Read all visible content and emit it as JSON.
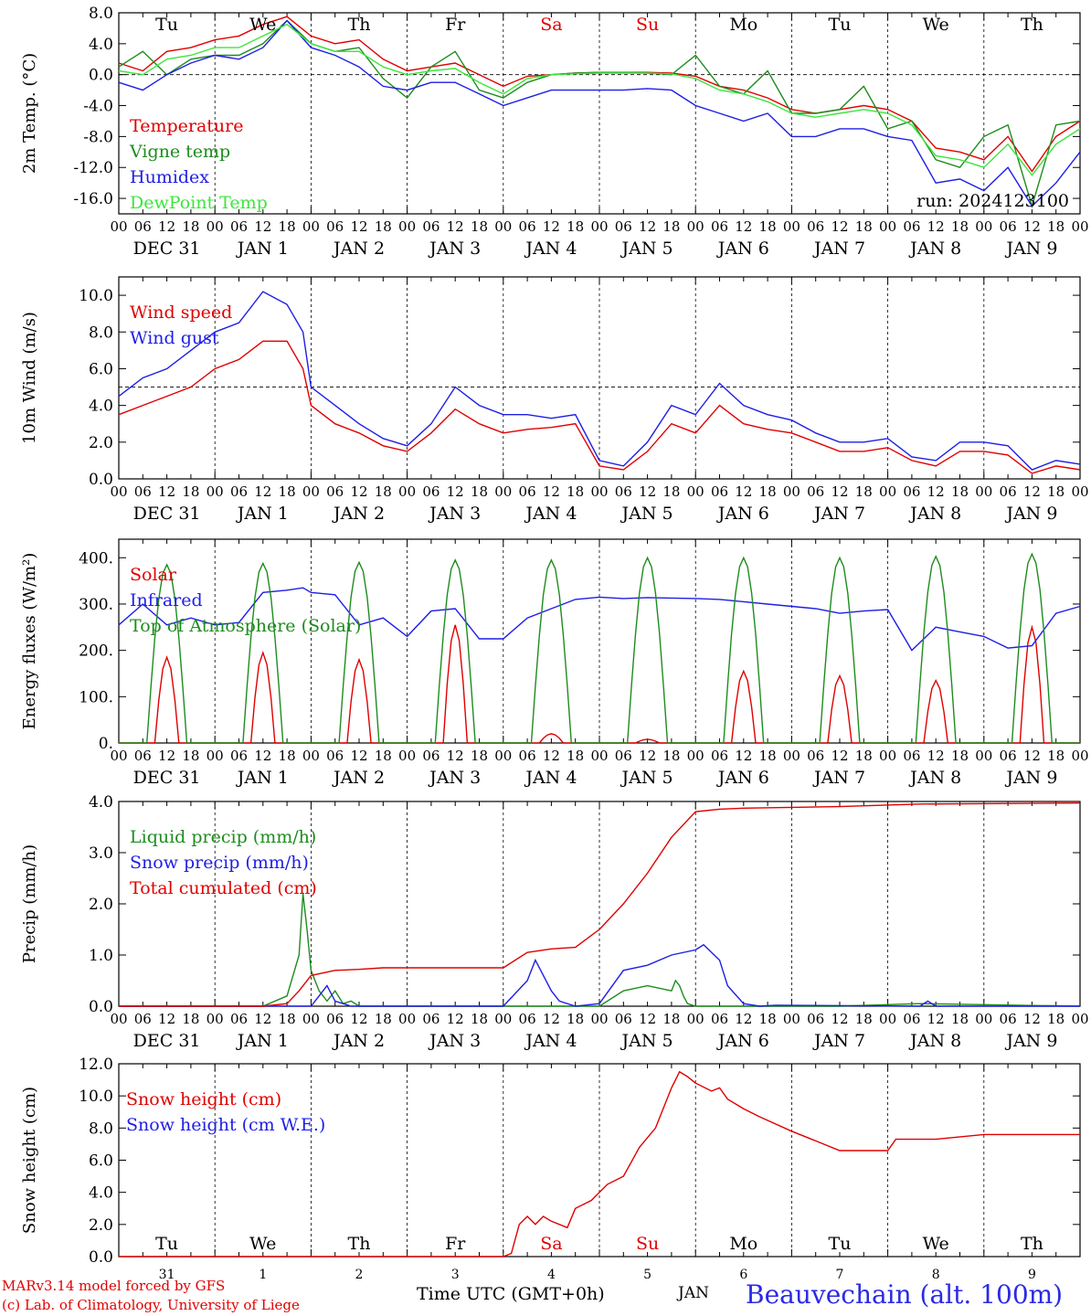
{
  "footer": {
    "credit_line1": "MARv3.14 model forced by GFS",
    "credit_line2": "(c) Lab. of Climatology, University of Liege",
    "x_title": "Time UTC (GMT+0h)",
    "month_label": "JAN",
    "station": "Beauvechain (alt. 100m)"
  },
  "weekday_labels": [
    "Tu",
    "We",
    "Th",
    "Fr",
    "Sa",
    "Su",
    "Mo",
    "Tu",
    "We",
    "Th"
  ],
  "weekend_flags": [
    false,
    false,
    false,
    false,
    true,
    true,
    false,
    false,
    false,
    false
  ],
  "date_labels": [
    "DEC 31",
    "JAN  1",
    "JAN  2",
    "JAN  3",
    "JAN  4",
    "JAN  5",
    "JAN  6",
    "JAN  7",
    "JAN  8",
    "JAN  9"
  ],
  "bottom_day_numbers": [
    "31",
    "1",
    "2",
    "3",
    "4",
    "5",
    "6",
    "7",
    "8",
    "9"
  ],
  "hour_tick_labels": [
    "00",
    "06",
    "12",
    "18"
  ],
  "final_hour_label": "00",
  "colors": {
    "red": "#e00000",
    "green": "#1e8c1e",
    "blue": "#1e1ee6",
    "lightgreen": "#3ce63c"
  },
  "chart_data": [
    {
      "type": "line",
      "ylabel": "2m Temp. (°C)",
      "ylim": [
        -18,
        8
      ],
      "yticks": [
        "8.0",
        "4.0",
        "0.0",
        "-4.0",
        "-8.0",
        "-12.0",
        "-16.0"
      ],
      "ytick_values": [
        8,
        4,
        0,
        -4,
        -8,
        -12,
        -16
      ],
      "ref_line": 0,
      "annotation": "run: 2024123100",
      "x_unit": "hours since DEC 31 00 UTC",
      "series": [
        {
          "name": "Temperature",
          "color": "#e00000",
          "x": [
            0,
            6,
            12,
            18,
            24,
            30,
            36,
            42,
            48,
            54,
            60,
            66,
            72,
            78,
            84,
            90,
            96,
            102,
            108,
            114,
            120,
            126,
            132,
            138,
            144,
            150,
            156,
            162,
            168,
            174,
            180,
            186,
            192,
            198,
            204,
            210,
            216,
            222,
            228,
            234,
            240
          ],
          "y": [
            1.5,
            0.5,
            3,
            3.5,
            4.5,
            5,
            6.5,
            7.5,
            5,
            4,
            4.5,
            2,
            0.5,
            1,
            1.5,
            0,
            -1.5,
            -0.2,
            0,
            0.2,
            0.3,
            0.3,
            0.3,
            0.2,
            -0.2,
            -1.5,
            -2,
            -3,
            -4.5,
            -5,
            -4.5,
            -4,
            -4.5,
            -6,
            -9.5,
            -10,
            -11,
            -8,
            -12.5,
            -8,
            -6
          ]
        },
        {
          "name": "Vigne temp",
          "color": "#1e8c1e",
          "x": [
            0,
            6,
            12,
            18,
            24,
            30,
            36,
            42,
            48,
            54,
            60,
            66,
            72,
            78,
            84,
            90,
            96,
            102,
            108,
            114,
            120,
            126,
            132,
            138,
            144,
            150,
            156,
            162,
            168,
            174,
            180,
            186,
            192,
            198,
            204,
            210,
            216,
            222,
            228,
            234,
            240
          ],
          "y": [
            1,
            3,
            0,
            2,
            2.5,
            2.5,
            4,
            7,
            4,
            3,
            3.5,
            -0.5,
            -3,
            1,
            3,
            -2,
            -3,
            -1,
            0,
            0.2,
            0.3,
            0.3,
            0.2,
            0,
            2.5,
            -1.5,
            -2.5,
            0.5,
            -5,
            -5,
            -4.5,
            -1.5,
            -7,
            -6,
            -11,
            -12,
            -8,
            -6.5,
            -17,
            -6.5,
            -6
          ]
        },
        {
          "name": "Humidex",
          "color": "#1e1ee6",
          "x": [
            0,
            6,
            12,
            18,
            24,
            30,
            36,
            42,
            48,
            54,
            60,
            66,
            72,
            78,
            84,
            90,
            96,
            102,
            108,
            114,
            120,
            126,
            132,
            138,
            144,
            150,
            156,
            162,
            168,
            174,
            180,
            186,
            192,
            198,
            204,
            210,
            216,
            222,
            228,
            234,
            240
          ],
          "y": [
            -1,
            -2,
            0,
            1.5,
            2.5,
            2,
            3.5,
            7,
            3.5,
            2.5,
            1,
            -1.5,
            -2,
            -1,
            -1,
            -2.5,
            -4,
            -3,
            -2,
            -2,
            -2,
            -2,
            -1.8,
            -2,
            -4,
            -5,
            -6,
            -5,
            -8,
            -8,
            -7,
            -7,
            -8,
            -8.5,
            -14,
            -13.5,
            -15,
            -12,
            -17,
            -14,
            -10
          ]
        },
        {
          "name": "DewPoint Temp",
          "color": "#3ce63c",
          "x": [
            0,
            6,
            12,
            18,
            24,
            30,
            36,
            42,
            48,
            54,
            60,
            66,
            72,
            78,
            84,
            90,
            96,
            102,
            108,
            114,
            120,
            126,
            132,
            138,
            144,
            150,
            156,
            162,
            168,
            174,
            180,
            186,
            192,
            198,
            204,
            210,
            216,
            222,
            228,
            234,
            240
          ],
          "y": [
            0.5,
            0,
            2,
            2.5,
            3.5,
            3.5,
            5,
            6.5,
            4,
            3,
            3,
            1,
            0,
            0.5,
            0.8,
            -1,
            -2.5,
            -0.5,
            0,
            0.1,
            0.2,
            0.2,
            0.2,
            0.1,
            -0.5,
            -2,
            -2.5,
            -3.5,
            -5,
            -5.5,
            -5,
            -4.5,
            -5,
            -6.5,
            -10.5,
            -11,
            -12,
            -9,
            -13,
            -9,
            -7
          ]
        }
      ],
      "legend": [
        "Temperature",
        "Vigne temp",
        "Humidex",
        "DewPoint Temp"
      ],
      "legend_placement": "bottom-left"
    },
    {
      "type": "line",
      "ylabel": "10m Wind (m/s)",
      "ylim": [
        0,
        11
      ],
      "yticks": [
        "10.0",
        "8.0",
        "6.0",
        "4.0",
        "2.0",
        "0.0"
      ],
      "ytick_values": [
        10,
        8,
        6,
        4,
        2,
        0
      ],
      "ref_line": 5,
      "series": [
        {
          "name": "Wind speed",
          "color": "#e00000",
          "x": [
            0,
            6,
            12,
            18,
            24,
            30,
            36,
            42,
            46,
            48,
            54,
            60,
            66,
            72,
            78,
            84,
            90,
            96,
            102,
            108,
            114,
            120,
            126,
            132,
            138,
            144,
            150,
            156,
            162,
            168,
            174,
            180,
            186,
            192,
            198,
            204,
            210,
            216,
            222,
            228,
            234,
            240
          ],
          "y": [
            3.5,
            4,
            4.5,
            5,
            6,
            6.5,
            7.5,
            7.5,
            6,
            4,
            3,
            2.5,
            1.8,
            1.5,
            2.5,
            3.8,
            3,
            2.5,
            2.7,
            2.8,
            3,
            0.7,
            0.5,
            1.5,
            3,
            2.5,
            4,
            3,
            2.7,
            2.5,
            2,
            1.5,
            1.5,
            1.7,
            1,
            0.7,
            1.5,
            1.5,
            1.3,
            0.3,
            0.7,
            0.5
          ]
        },
        {
          "name": "Wind gust",
          "color": "#1e1ee6",
          "x": [
            0,
            6,
            12,
            18,
            24,
            30,
            36,
            42,
            46,
            48,
            54,
            60,
            66,
            72,
            78,
            84,
            90,
            96,
            102,
            108,
            114,
            120,
            126,
            132,
            138,
            144,
            150,
            156,
            162,
            168,
            174,
            180,
            186,
            192,
            198,
            204,
            210,
            216,
            222,
            228,
            234,
            240
          ],
          "y": [
            4.5,
            5.5,
            6,
            7,
            8,
            8.5,
            10.2,
            9.5,
            8,
            5,
            4,
            3,
            2.2,
            1.8,
            3,
            5,
            4,
            3.5,
            3.5,
            3.3,
            3.5,
            1,
            0.7,
            2,
            4,
            3.5,
            5.2,
            4,
            3.5,
            3.2,
            2.5,
            2,
            2,
            2.2,
            1.2,
            1,
            2,
            2,
            1.8,
            0.5,
            1,
            0.8
          ]
        }
      ],
      "legend": [
        "Wind speed",
        "Wind gust"
      ],
      "legend_placement": "top-left"
    },
    {
      "type": "line",
      "ylabel": "Energy fluxes (W/m²)",
      "ylim": [
        0,
        440
      ],
      "yticks": [
        "400.",
        "300.",
        "200.",
        "100.",
        "0."
      ],
      "ytick_values": [
        400,
        300,
        200,
        100,
        0
      ],
      "series": [
        {
          "name": "Solar",
          "color": "#e00000",
          "peaks": [
            185,
            195,
            180,
            255,
            20,
            8,
            155,
            145,
            135,
            250
          ]
        },
        {
          "name": "Infrared",
          "color": "#1e1ee6",
          "x": [
            0,
            6,
            12,
            18,
            24,
            30,
            36,
            42,
            46,
            48,
            54,
            60,
            66,
            72,
            78,
            84,
            90,
            96,
            102,
            108,
            114,
            120,
            126,
            132,
            138,
            144,
            150,
            156,
            162,
            168,
            174,
            180,
            186,
            192,
            198,
            204,
            210,
            216,
            222,
            228,
            234,
            240
          ],
          "y": [
            255,
            300,
            255,
            270,
            255,
            260,
            325,
            330,
            335,
            325,
            320,
            255,
            270,
            230,
            285,
            290,
            225,
            225,
            270,
            290,
            310,
            315,
            312,
            314,
            313,
            312,
            310,
            305,
            300,
            295,
            290,
            280,
            285,
            288,
            200,
            250,
            240,
            230,
            205,
            210,
            280,
            295
          ]
        },
        {
          "name": "Top of Atmosphere (Solar)",
          "color": "#1e8c1e",
          "peaks": [
            385,
            388,
            390,
            395,
            395,
            400,
            400,
            400,
            403,
            408
          ]
        }
      ],
      "legend": [
        "Solar",
        "Infrared",
        "Top of Atmosphere (Solar)"
      ],
      "legend_placement": "top-left"
    },
    {
      "type": "line",
      "ylabel": "Precip (mm/h)",
      "ylim": [
        0,
        4
      ],
      "yticks": [
        "4.0",
        "3.0",
        "2.0",
        "1.0",
        "0.0"
      ],
      "ytick_values": [
        4,
        3,
        2,
        1,
        0
      ],
      "series": [
        {
          "name": "Liquid precip (mm/h)",
          "color": "#1e8c1e",
          "x": [
            0,
            36,
            42,
            45,
            46,
            47,
            48,
            50,
            52,
            54,
            56,
            58,
            60,
            66,
            96,
            102,
            120,
            126,
            132,
            138,
            139,
            140,
            141,
            142,
            144,
            180,
            200,
            240
          ],
          "y": [
            0,
            0,
            0.2,
            1,
            2.2,
            1.5,
            0.7,
            0.3,
            0.1,
            0.3,
            0.05,
            0.1,
            0,
            0,
            0,
            0,
            0,
            0.3,
            0.4,
            0.3,
            0.5,
            0.4,
            0.2,
            0.05,
            0,
            0,
            0.05,
            0
          ]
        },
        {
          "name": "Snow precip (mm/h)",
          "color": "#1e1ee6",
          "x": [
            0,
            48,
            50,
            52,
            54,
            56,
            58,
            60,
            96,
            102,
            104,
            108,
            110,
            114,
            120,
            126,
            132,
            138,
            144,
            146,
            150,
            152,
            156,
            160,
            164,
            200,
            202,
            204,
            240
          ],
          "y": [
            0,
            0,
            0.2,
            0.4,
            0.1,
            0.05,
            0,
            0,
            0,
            0.5,
            0.9,
            0.3,
            0.1,
            0,
            0.05,
            0.7,
            0.8,
            1.0,
            1.1,
            1.2,
            0.9,
            0.4,
            0.05,
            0,
            0.02,
            0,
            0.1,
            0,
            0
          ]
        },
        {
          "name": "Total cumulated (cm)",
          "color": "#e00000",
          "x": [
            0,
            36,
            42,
            45,
            48,
            54,
            60,
            66,
            96,
            102,
            108,
            114,
            120,
            126,
            132,
            138,
            144,
            150,
            156,
            180,
            200,
            240
          ],
          "y": [
            0,
            0,
            0.05,
            0.3,
            0.6,
            0.7,
            0.72,
            0.75,
            0.75,
            1.05,
            1.12,
            1.15,
            1.5,
            2.0,
            2.6,
            3.3,
            3.8,
            3.85,
            3.87,
            3.9,
            3.95,
            3.97
          ]
        }
      ],
      "legend": [
        "Liquid precip (mm/h)",
        "Snow precip (mm/h)",
        "Total cumulated (cm)"
      ],
      "legend_placement": "top-left"
    },
    {
      "type": "line",
      "ylabel": "Snow height (cm)",
      "ylim": [
        0,
        12
      ],
      "yticks": [
        "12.0",
        "10.0",
        "8.0",
        "6.0",
        "4.0",
        "2.0",
        "0.0"
      ],
      "ytick_values": [
        12,
        10,
        8,
        6,
        4,
        2,
        0
      ],
      "series": [
        {
          "name": "Snow height (cm)",
          "color": "#e00000",
          "x": [
            0,
            96,
            98,
            100,
            102,
            104,
            106,
            108,
            112,
            114,
            118,
            122,
            126,
            130,
            134,
            138,
            140,
            142,
            144,
            148,
            150,
            152,
            156,
            160,
            168,
            174,
            180,
            192,
            194,
            198,
            204,
            216,
            240
          ],
          "y": [
            0,
            0,
            0.2,
            2,
            2.5,
            2,
            2.5,
            2.2,
            1.8,
            3,
            3.5,
            4.5,
            5,
            6.8,
            8,
            10.5,
            11.5,
            11.2,
            10.8,
            10.3,
            10.5,
            9.8,
            9.2,
            8.7,
            7.8,
            7.2,
            6.6,
            6.6,
            7.3,
            7.3,
            7.3,
            7.6,
            7.6
          ]
        },
        {
          "name": "Snow height (cm W.E.)",
          "color": "#1e1ee6",
          "x": [],
          "y": []
        }
      ],
      "legend": [
        "Snow height (cm)",
        "Snow height (cm W.E.)"
      ],
      "legend_placement": "top-left"
    }
  ]
}
